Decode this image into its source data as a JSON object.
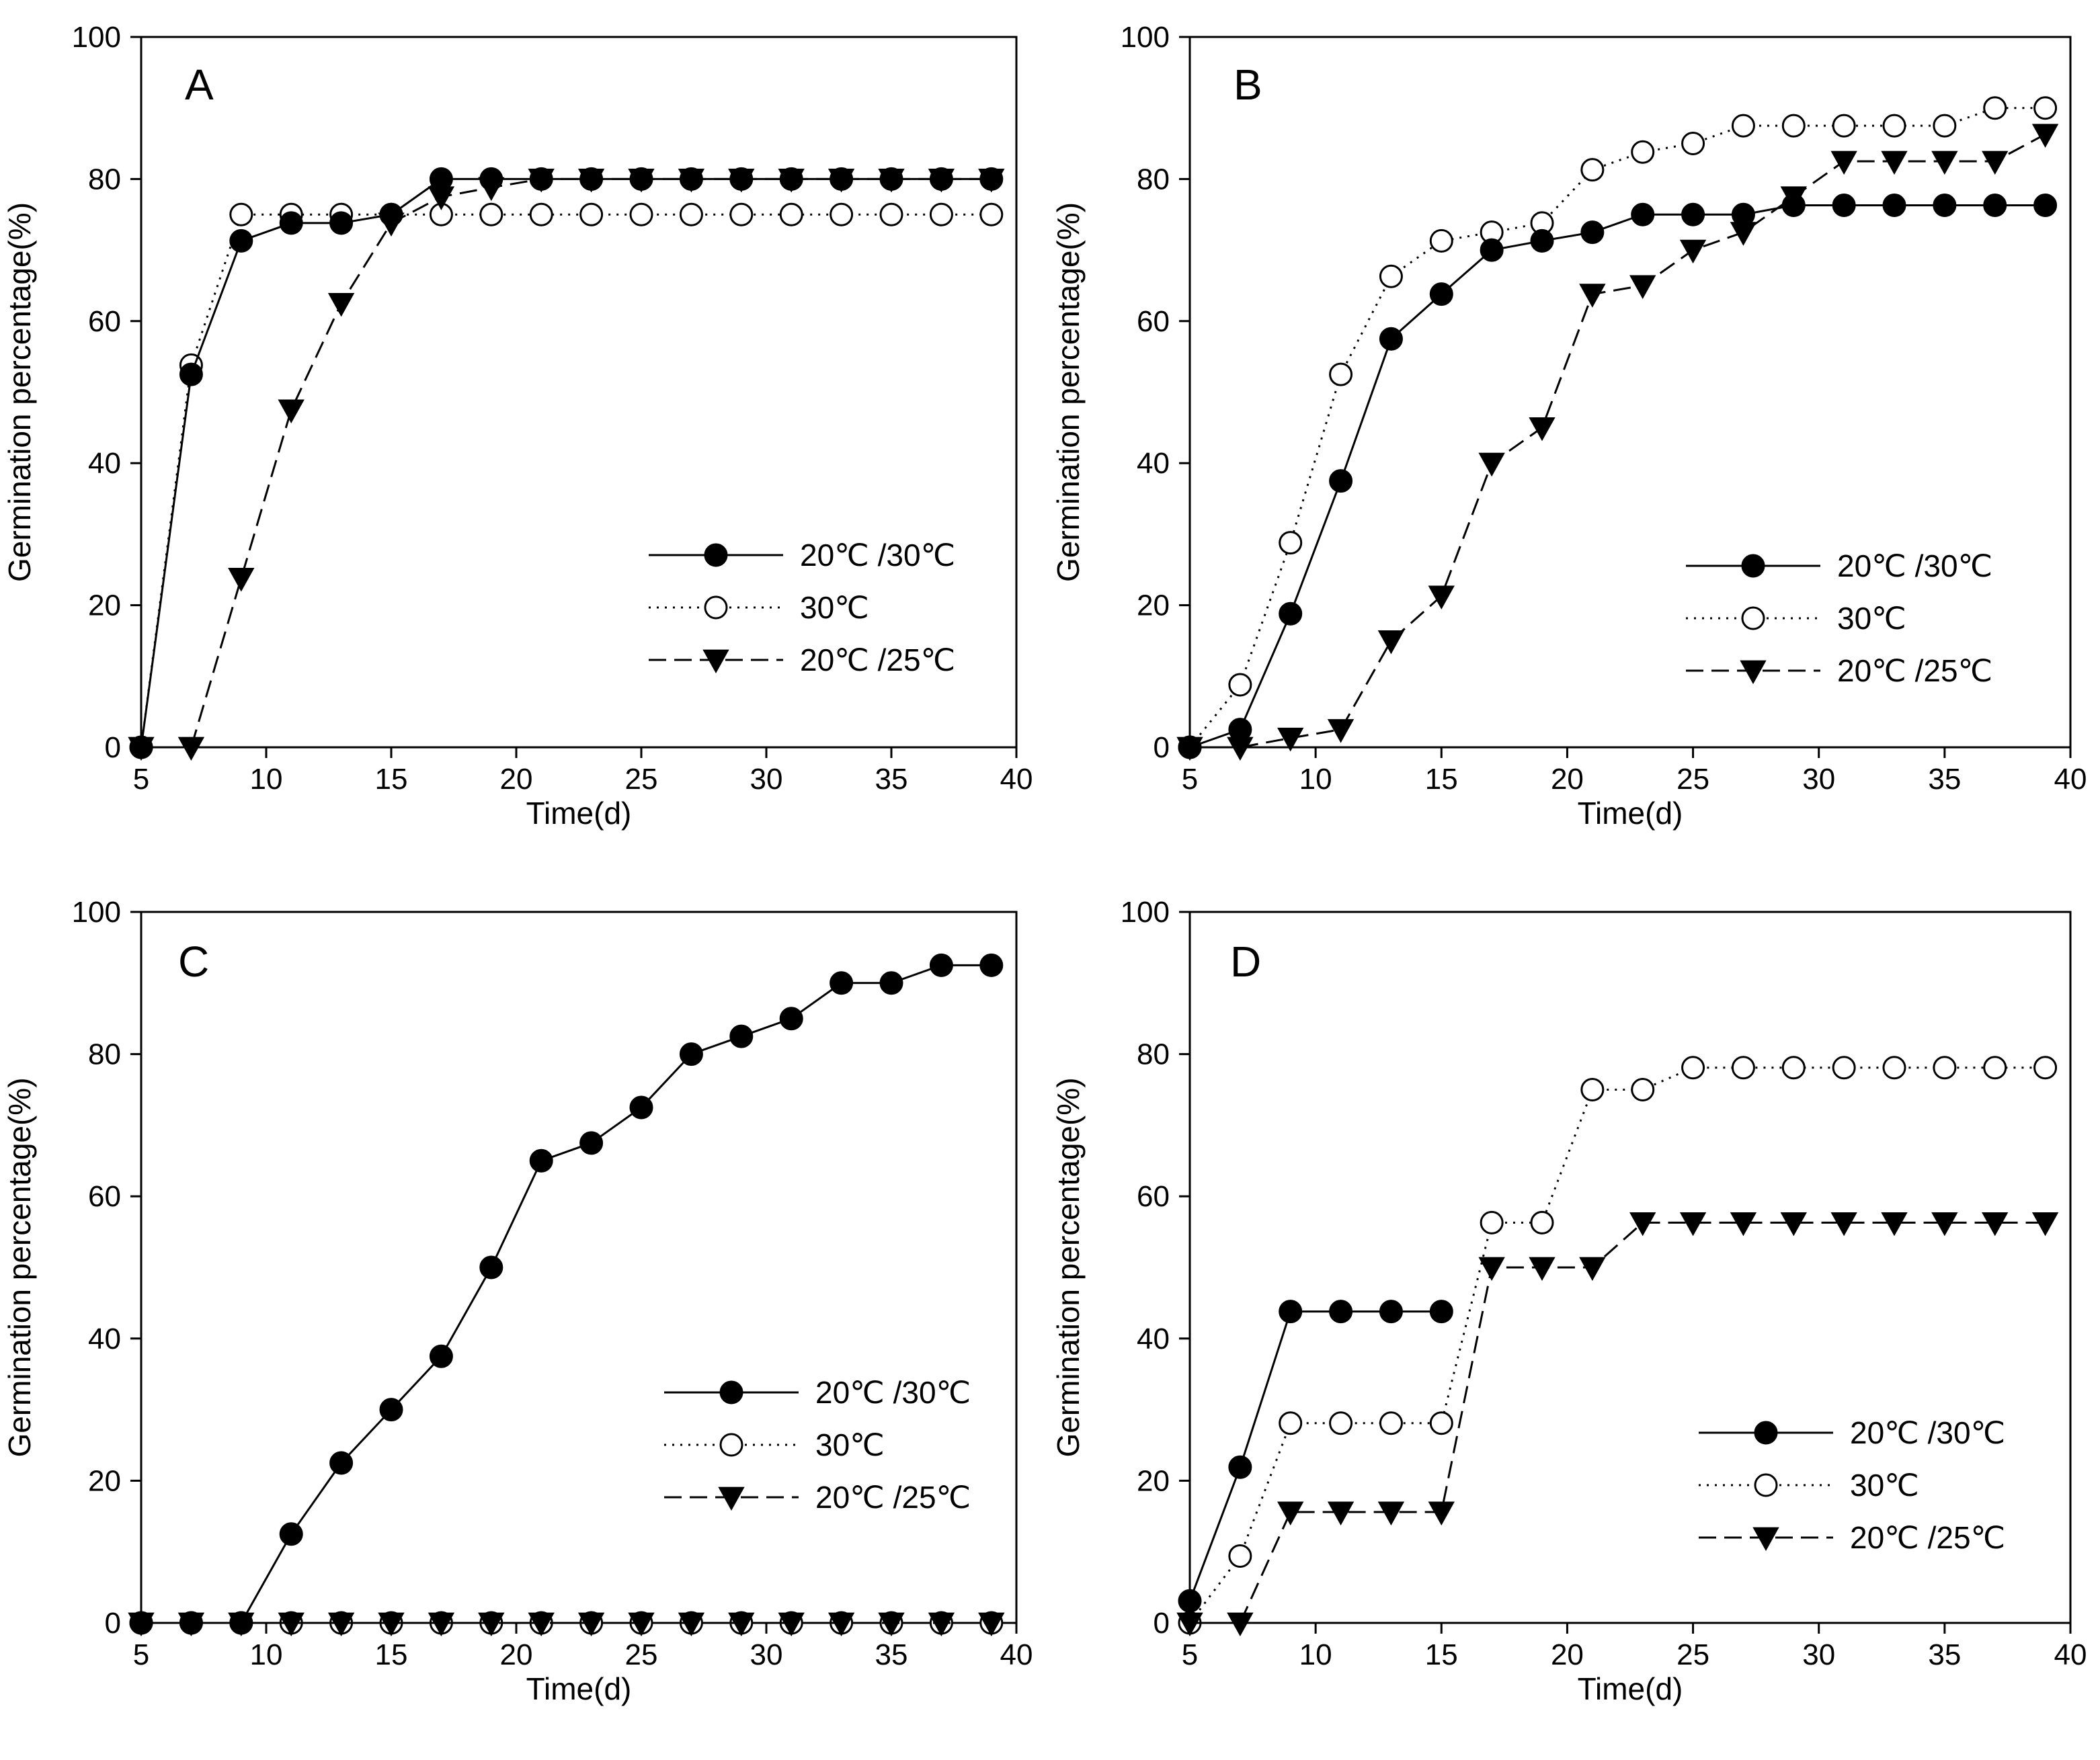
{
  "chart_data": [
    {
      "type": "line",
      "panel_label": "A",
      "xlabel": "Time(d)",
      "ylabel": "Germination percentage(%)",
      "xlim": [
        5,
        40
      ],
      "ylim": [
        0,
        100
      ],
      "xticks": [
        5,
        10,
        15,
        20,
        25,
        30,
        35,
        40
      ],
      "yticks": [
        0,
        20,
        40,
        60,
        80,
        100
      ],
      "legend_position": "lower-right",
      "series": [
        {
          "name": "20℃ /30℃",
          "marker": "filled-circle",
          "line": "solid",
          "x": [
            5,
            7,
            9,
            11,
            13,
            15,
            17,
            19,
            21,
            23,
            25,
            27,
            29,
            31,
            33,
            35,
            37,
            39
          ],
          "y": [
            0,
            52.5,
            71.3,
            73.8,
            73.8,
            75,
            80,
            80,
            80,
            80,
            80,
            80,
            80,
            80,
            80,
            80,
            80,
            80
          ]
        },
        {
          "name": "30℃",
          "marker": "open-circle",
          "line": "dotted",
          "x": [
            5,
            7,
            9,
            11,
            13,
            15,
            17,
            19,
            21,
            23,
            25,
            27,
            29,
            31,
            33,
            35,
            37,
            39
          ],
          "y": [
            0,
            53.8,
            75,
            75,
            75,
            75,
            75,
            75,
            75,
            75,
            75,
            75,
            75,
            75,
            75,
            75,
            75,
            75
          ]
        },
        {
          "name": "20℃ /25℃",
          "marker": "filled-triangle-down",
          "line": "dashed",
          "x": [
            5,
            7,
            9,
            11,
            13,
            15,
            17,
            19,
            21,
            23,
            25,
            27,
            29,
            31,
            33,
            35,
            37,
            39
          ],
          "y": [
            0,
            0,
            23.8,
            47.5,
            62.5,
            73.8,
            77.5,
            78.8,
            80,
            80,
            80,
            80,
            80,
            80,
            80,
            80,
            80,
            80
          ]
        }
      ]
    },
    {
      "type": "line",
      "panel_label": "B",
      "xlabel": "Time(d)",
      "ylabel": "Germination percentage(%)",
      "xlim": [
        5,
        40
      ],
      "ylim": [
        0,
        100
      ],
      "xticks": [
        5,
        10,
        15,
        20,
        25,
        30,
        35,
        40
      ],
      "yticks": [
        0,
        20,
        40,
        60,
        80,
        100
      ],
      "legend_position": "lower-right",
      "series": [
        {
          "name": "20℃ /30℃",
          "marker": "filled-circle",
          "line": "solid",
          "x": [
            5,
            7,
            9,
            11,
            13,
            15,
            17,
            19,
            21,
            23,
            25,
            27,
            29,
            31,
            33,
            35,
            37,
            39
          ],
          "y": [
            0,
            2.5,
            18.8,
            37.5,
            57.5,
            63.8,
            70,
            71.3,
            72.5,
            75,
            75,
            75,
            76.3,
            76.3,
            76.3,
            76.3,
            76.3,
            76.3
          ]
        },
        {
          "name": "30℃",
          "marker": "open-circle",
          "line": "dotted",
          "x": [
            5,
            7,
            9,
            11,
            13,
            15,
            17,
            19,
            21,
            23,
            25,
            27,
            29,
            31,
            33,
            35,
            37,
            39
          ],
          "y": [
            0,
            8.8,
            28.8,
            52.5,
            66.3,
            71.3,
            72.5,
            73.8,
            81.3,
            83.8,
            85,
            87.5,
            87.5,
            87.5,
            87.5,
            87.5,
            90,
            90
          ]
        },
        {
          "name": "20℃ /25℃",
          "marker": "filled-triangle-down",
          "line": "dashed",
          "x": [
            5,
            7,
            9,
            11,
            13,
            15,
            17,
            19,
            21,
            23,
            25,
            27,
            29,
            31,
            33,
            35,
            37,
            39
          ],
          "y": [
            0,
            0,
            1.3,
            2.5,
            15,
            21.3,
            40,
            45,
            63.8,
            65,
            70,
            72.5,
            77.5,
            82.5,
            82.5,
            82.5,
            82.5,
            86.3
          ]
        }
      ]
    },
    {
      "type": "line",
      "panel_label": "C",
      "xlabel": "Time(d)",
      "ylabel": "Germination percentage(%)",
      "xlim": [
        5,
        40
      ],
      "ylim": [
        0,
        100
      ],
      "xticks": [
        5,
        10,
        15,
        20,
        25,
        30,
        35,
        40
      ],
      "yticks": [
        0,
        20,
        40,
        60,
        80,
        100
      ],
      "legend_position": "lower-right",
      "series": [
        {
          "name": "20℃ /30℃",
          "marker": "filled-circle",
          "line": "solid",
          "x": [
            5,
            7,
            9,
            11,
            13,
            15,
            17,
            19,
            21,
            23,
            25,
            27,
            29,
            31,
            33,
            35,
            37,
            39
          ],
          "y": [
            0,
            0,
            0,
            12.5,
            22.5,
            30,
            37.5,
            50,
            65,
            67.5,
            72.5,
            80,
            82.5,
            85,
            90,
            90,
            92.5,
            92.5
          ]
        },
        {
          "name": "30℃",
          "marker": "open-circle",
          "line": "dotted",
          "x": [
            5,
            7,
            9,
            11,
            13,
            15,
            17,
            19,
            21,
            23,
            25,
            27,
            29,
            31,
            33,
            35,
            37,
            39
          ],
          "y": [
            0,
            0,
            0,
            0,
            0,
            0,
            0,
            0,
            0,
            0,
            0,
            0,
            0,
            0,
            0,
            0,
            0,
            0
          ]
        },
        {
          "name": "20℃ /25℃",
          "marker": "filled-triangle-down",
          "line": "dashed",
          "x": [
            5,
            7,
            9,
            11,
            13,
            15,
            17,
            19,
            21,
            23,
            25,
            27,
            29,
            31,
            33,
            35,
            37,
            39
          ],
          "y": [
            0,
            0,
            0,
            0,
            0,
            0,
            0,
            0,
            0,
            0,
            0,
            0,
            0,
            0,
            0,
            0,
            0,
            0
          ]
        }
      ]
    },
    {
      "type": "line",
      "panel_label": "D",
      "xlabel": "Time(d)",
      "ylabel": "Germination percentage(%)",
      "xlim": [
        5,
        40
      ],
      "ylim": [
        0,
        100
      ],
      "xticks": [
        5,
        10,
        15,
        20,
        25,
        30,
        35,
        40
      ],
      "yticks": [
        0,
        20,
        40,
        60,
        80,
        100
      ],
      "legend_position": "lower-right",
      "series": [
        {
          "name": "20℃ /30℃",
          "marker": "filled-circle",
          "line": "solid",
          "x": [
            5,
            7,
            9,
            11,
            13,
            15
          ],
          "y": [
            3.1,
            21.9,
            43.8,
            43.8,
            43.8,
            43.8
          ]
        },
        {
          "name": "30℃",
          "marker": "open-circle",
          "line": "dotted",
          "x": [
            5,
            7,
            9,
            11,
            13,
            15,
            17,
            19,
            21,
            23,
            25,
            27,
            29,
            31,
            33,
            35,
            37,
            39
          ],
          "y": [
            0,
            9.4,
            28.1,
            28.1,
            28.1,
            28.1,
            56.3,
            56.3,
            75,
            75,
            78.1,
            78.1,
            78.1,
            78.1,
            78.1,
            78.1,
            78.1,
            78.1
          ]
        },
        {
          "name": "20℃ /25℃",
          "marker": "filled-triangle-down",
          "line": "dashed",
          "x": [
            5,
            7,
            9,
            11,
            13,
            15,
            17,
            19,
            21,
            23,
            25,
            27,
            29,
            31,
            33,
            35,
            37,
            39
          ],
          "y": [
            0,
            0,
            15.6,
            15.6,
            15.6,
            15.6,
            50,
            50,
            50,
            56.3,
            56.3,
            56.3,
            56.3,
            56.3,
            56.3,
            56.3,
            56.3,
            56.3
          ]
        }
      ]
    }
  ]
}
